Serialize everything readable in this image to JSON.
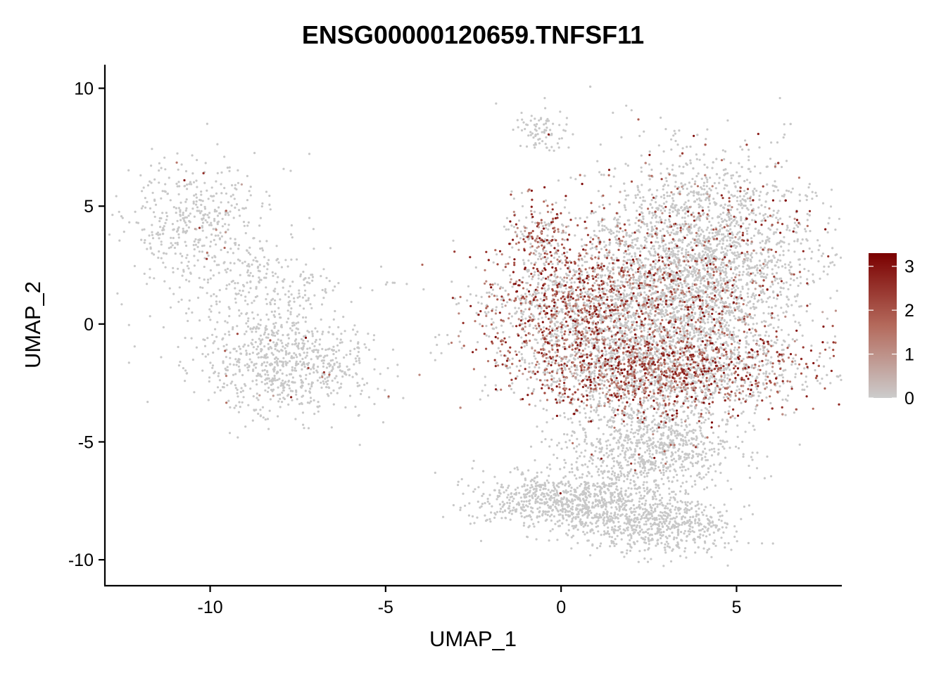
{
  "chart_data": {
    "type": "scatter",
    "title": "ENSG00000120659.TNFSF11",
    "xlabel": "UMAP_1",
    "ylabel": "UMAP_2",
    "xlim": [
      -13,
      8
    ],
    "ylim": [
      -11.1,
      11
    ],
    "xticks": [
      -10,
      -5,
      0,
      5
    ],
    "yticks": [
      -10,
      -5,
      0,
      5,
      10
    ],
    "xtick_labels": [
      "-10",
      "-5",
      "0",
      "5"
    ],
    "ytick_labels": [
      "-10",
      "-5",
      "0",
      "5",
      "10"
    ],
    "grid": false,
    "legend": {
      "placement": "right",
      "type": "colorbar",
      "min": 0,
      "max": 3.3,
      "ticks": [
        0,
        1,
        2,
        3
      ],
      "tick_labels": [
        "0",
        "1",
        "2",
        "3"
      ],
      "color_low": "#cccccc",
      "color_high": "#7a0000"
    },
    "point_color_zero": "#c8c8c8",
    "clusters": [
      {
        "region": "left-upper",
        "cx": -10.6,
        "cy": 4.6,
        "sx": 0.9,
        "sy": 1.3,
        "n": 380,
        "expr_frac": 0.02
      },
      {
        "region": "left-middle",
        "cx": -8.6,
        "cy": 1.4,
        "sx": 1.1,
        "sy": 1.3,
        "n": 320,
        "expr_frac": 0.0
      },
      {
        "region": "left-lower",
        "cx": -7.8,
        "cy": -1.8,
        "sx": 1.2,
        "sy": 1.0,
        "n": 700,
        "expr_frac": 0.02
      },
      {
        "region": "small-middle",
        "cx": -4.7,
        "cy": 1.65,
        "sx": 0.4,
        "sy": 0.1,
        "n": 8,
        "expr_frac": 0.0
      },
      {
        "region": "right-top-stream",
        "cx": -0.5,
        "cy": 8.3,
        "sx": 0.4,
        "sy": 0.5,
        "n": 80,
        "expr_frac": 0.0
      },
      {
        "region": "right-main-upper",
        "cx": 4.0,
        "cy": 3.3,
        "sx": 1.6,
        "sy": 1.9,
        "n": 2300,
        "expr_frac": 0.12
      },
      {
        "region": "right-main-left",
        "cx": 0.6,
        "cy": 0.6,
        "sx": 1.5,
        "sy": 1.6,
        "n": 1900,
        "expr_frac": 0.45
      },
      {
        "region": "right-main-ridge",
        "cx": -0.6,
        "cy": 3.8,
        "sx": 0.4,
        "sy": 0.8,
        "n": 160,
        "expr_frac": 0.65
      },
      {
        "region": "right-main-lower",
        "cx": 3.0,
        "cy": -2.0,
        "sx": 1.9,
        "sy": 0.9,
        "n": 2400,
        "expr_frac": 0.45
      },
      {
        "region": "right-main-center",
        "cx": 3.5,
        "cy": 0.6,
        "sx": 1.4,
        "sy": 1.1,
        "n": 900,
        "expr_frac": 0.18
      },
      {
        "region": "right-lower-stalk",
        "cx": 2.5,
        "cy": -5.2,
        "sx": 1.2,
        "sy": 1.0,
        "n": 900,
        "expr_frac": 0.02
      },
      {
        "region": "right-bottom-left",
        "cx": 0.2,
        "cy": -7.5,
        "sx": 1.3,
        "sy": 0.6,
        "n": 800,
        "expr_frac": 0.0
      },
      {
        "region": "right-bottom-right",
        "cx": 2.7,
        "cy": -8.5,
        "sx": 1.1,
        "sy": 0.6,
        "n": 600,
        "expr_frac": 0.0
      }
    ]
  }
}
